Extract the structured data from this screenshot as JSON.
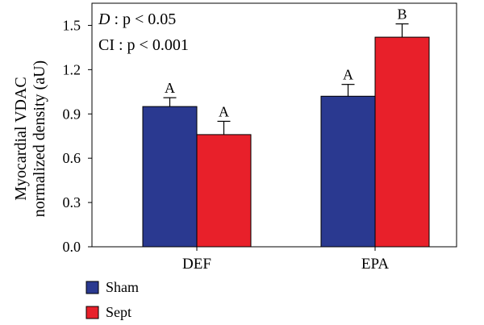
{
  "chart_data": {
    "type": "bar",
    "title": "",
    "xlabel": "",
    "ylabel": [
      "Myocardial VDAC",
      "normalized density (aU)"
    ],
    "ylim": [
      0,
      1.65
    ],
    "yticks": [
      "0.0",
      "0.3",
      "0.6",
      "0.9",
      "1.2",
      "1.5"
    ],
    "categories": [
      "DEF",
      "EPA"
    ],
    "series": [
      {
        "name": "Sham",
        "color": "#2a3990",
        "values": [
          0.95,
          1.02
        ],
        "errors": [
          0.06,
          0.08
        ],
        "letters": [
          "A",
          "A"
        ]
      },
      {
        "name": "Sept",
        "color": "#e8202a",
        "values": [
          0.76,
          1.42
        ],
        "errors": [
          0.09,
          0.09
        ],
        "letters": [
          "A",
          "B"
        ]
      }
    ],
    "annotations": [
      {
        "label": "D",
        "rest": " : p < 0.05"
      },
      {
        "label": "CI",
        "rest": " : p < 0.001"
      }
    ],
    "legend_position": "bottom-left",
    "grid": false
  }
}
